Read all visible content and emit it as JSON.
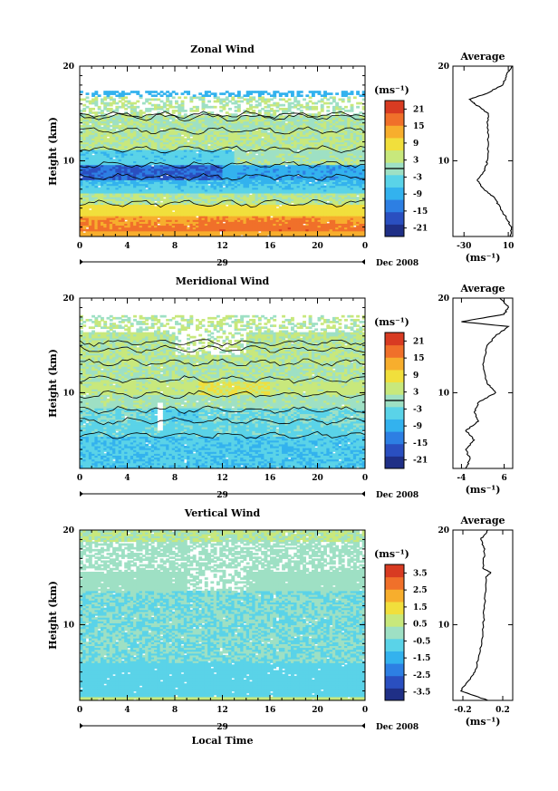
{
  "colors": {
    "scale": [
      "#1f2f86",
      "#2a4fc0",
      "#2d7fe3",
      "#33b2ee",
      "#5ad3e8",
      "#9ee0c4",
      "#c8e87c",
      "#f1df3c",
      "#f7ae2d",
      "#f0702a",
      "#d83b22"
    ]
  },
  "panels": [
    {
      "id": "zonal",
      "title": "Zonal Wind",
      "ylabel": "Height (km)",
      "y_ticks": [
        "20",
        "10"
      ],
      "x_ticks": [
        "0",
        "4",
        "8",
        "12",
        "16",
        "20",
        "0"
      ],
      "day_label": "29",
      "month_label": "Dec 2008",
      "cb_unit": "(ms⁻¹)",
      "cb_ticks": [
        "21",
        "15",
        "9",
        "3",
        "-3",
        "-9",
        "-15",
        "-21"
      ],
      "avg_title": "Average",
      "avg_y_ticks": [
        "20",
        "10"
      ],
      "avg_x_ticks": [
        "-30",
        "10"
      ],
      "avg_unit": "(ms⁻¹)"
    },
    {
      "id": "meridional",
      "title": "Meridional Wind",
      "ylabel": "Height (km)",
      "y_ticks": [
        "20",
        "10"
      ],
      "x_ticks": [
        "0",
        "4",
        "8",
        "12",
        "16",
        "20",
        "0"
      ],
      "day_label": "29",
      "month_label": "Dec 2008",
      "cb_unit": "(ms⁻¹)",
      "cb_ticks": [
        "21",
        "15",
        "9",
        "3",
        "-3",
        "-9",
        "-15",
        "-21"
      ],
      "avg_title": "Average",
      "avg_y_ticks": [
        "20",
        "10"
      ],
      "avg_x_ticks": [
        "-4",
        "6"
      ],
      "avg_unit": "(ms⁻¹)"
    },
    {
      "id": "vertical",
      "title": "Vertical Wind",
      "ylabel": "Height (km)",
      "y_ticks": [
        "20",
        "10"
      ],
      "x_ticks": [
        "0",
        "4",
        "8",
        "12",
        "16",
        "20",
        "0"
      ],
      "day_label": "29",
      "month_label": "Dec 2008",
      "xlabel": "Local Time",
      "cb_unit": "(ms⁻¹)",
      "cb_ticks": [
        "3.5",
        "2.5",
        "1.5",
        "0.5",
        "-0.5",
        "-1.5",
        "-2.5",
        "-3.5"
      ],
      "avg_title": "Average",
      "avg_y_ticks": [
        "20",
        "10"
      ],
      "avg_x_ticks": [
        "-0.2",
        "0.2"
      ],
      "avg_unit": "(ms⁻¹)"
    }
  ],
  "chart_data": [
    {
      "type": "heatmap",
      "title": "Zonal Wind",
      "xlabel": "",
      "ylabel": "Height (km)",
      "xlim": [
        0,
        24
      ],
      "ylim": [
        2,
        20
      ],
      "x_ticks": [
        0,
        4,
        8,
        12,
        16,
        20,
        24
      ],
      "colorbar": {
        "unit": "(ms⁻¹)",
        "range": [
          -24,
          24
        ],
        "ticks": [
          -21,
          -15,
          -9,
          -3,
          3,
          9,
          15,
          21
        ]
      },
      "height_profile_of_time_mean": [
        {
          "h": 20,
          "v": 14
        },
        {
          "h": 19,
          "v": 8
        },
        {
          "h": 18,
          "v": 5
        },
        {
          "h": 17,
          "v": -12
        },
        {
          "h": 16.5,
          "v": -25
        },
        {
          "h": 16,
          "v": -20
        },
        {
          "h": 15,
          "v": -8
        },
        {
          "h": 14,
          "v": -9
        },
        {
          "h": 12,
          "v": -8
        },
        {
          "h": 10,
          "v": -9
        },
        {
          "h": 9,
          "v": -11
        },
        {
          "h": 8,
          "v": -18
        },
        {
          "h": 7,
          "v": -12
        },
        {
          "h": 6,
          "v": -2
        },
        {
          "h": 5,
          "v": 3
        },
        {
          "h": 4,
          "v": 8
        },
        {
          "h": 3,
          "v": 13
        },
        {
          "h": 2,
          "v": 12
        }
      ],
      "avg_xlim": [
        -40,
        14
      ]
    },
    {
      "type": "heatmap",
      "title": "Meridional Wind",
      "xlabel": "",
      "ylabel": "Height (km)",
      "xlim": [
        0,
        24
      ],
      "ylim": [
        2,
        20
      ],
      "x_ticks": [
        0,
        4,
        8,
        12,
        16,
        20,
        24
      ],
      "colorbar": {
        "unit": "(ms⁻¹)",
        "range": [
          -24,
          24
        ],
        "ticks": [
          -21,
          -15,
          -9,
          -3,
          3,
          9,
          15,
          21
        ]
      },
      "height_profile_of_time_mean": [
        {
          "h": 20,
          "v": 5
        },
        {
          "h": 19,
          "v": 7
        },
        {
          "h": 18.3,
          "v": 6
        },
        {
          "h": 17.5,
          "v": -4
        },
        {
          "h": 17,
          "v": 7
        },
        {
          "h": 16,
          "v": 4
        },
        {
          "h": 15,
          "v": 2
        },
        {
          "h": 13,
          "v": 1
        },
        {
          "h": 11,
          "v": 2
        },
        {
          "h": 10,
          "v": 4
        },
        {
          "h": 9,
          "v": 0
        },
        {
          "h": 8,
          "v": -1
        },
        {
          "h": 7,
          "v": 0
        },
        {
          "h": 6,
          "v": -3
        },
        {
          "h": 5,
          "v": -1
        },
        {
          "h": 4,
          "v": -3
        },
        {
          "h": 3,
          "v": -2
        },
        {
          "h": 2,
          "v": -3
        }
      ],
      "avg_xlim": [
        -6,
        8
      ]
    },
    {
      "type": "heatmap",
      "title": "Vertical Wind",
      "xlabel": "Local Time",
      "ylabel": "Height (km)",
      "xlim": [
        0,
        24
      ],
      "ylim": [
        2,
        20
      ],
      "x_ticks": [
        0,
        4,
        8,
        12,
        16,
        20,
        24
      ],
      "colorbar": {
        "unit": "(ms⁻¹)",
        "range": [
          -4,
          4
        ],
        "ticks": [
          -3.5,
          -2.5,
          -1.5,
          -0.5,
          0.5,
          1.5,
          2.5,
          3.5
        ]
      },
      "height_profile_of_time_mean": [
        {
          "h": 20,
          "v": 0.05
        },
        {
          "h": 19,
          "v": -0.02
        },
        {
          "h": 18,
          "v": 0.02
        },
        {
          "h": 16,
          "v": 0.0
        },
        {
          "h": 15.5,
          "v": 0.08
        },
        {
          "h": 15,
          "v": 0.03
        },
        {
          "h": 13,
          "v": 0.02
        },
        {
          "h": 11,
          "v": 0.01
        },
        {
          "h": 9,
          "v": 0.0
        },
        {
          "h": 7,
          "v": -0.03
        },
        {
          "h": 5,
          "v": -0.08
        },
        {
          "h": 4,
          "v": -0.15
        },
        {
          "h": 3,
          "v": -0.22
        },
        {
          "h": 2,
          "v": 0.05
        }
      ],
      "avg_xlim": [
        -0.3,
        0.3
      ]
    }
  ]
}
